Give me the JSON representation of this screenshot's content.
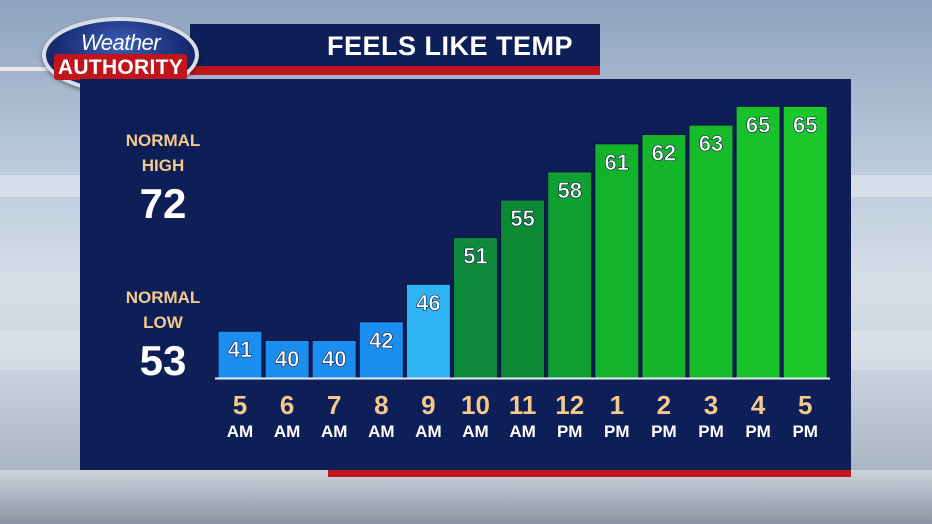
{
  "logo": {
    "line1": "Weather",
    "line2": "AUTHORITY"
  },
  "header": {
    "title": "FEELS LIKE TEMP"
  },
  "normals": {
    "high_label_1": "NORMAL",
    "high_label_2": "HIGH",
    "high_value": "72",
    "low_label_1": "NORMAL",
    "low_label_2": "LOW",
    "low_value": "53"
  },
  "colors": {
    "panel": "#0e1e57",
    "accent_red": "#c0151b",
    "label_gold": "#f3c98c",
    "bar_blue": "#1b8ef0",
    "bar_light_blue": "#2fb3f2",
    "bar_dark_green": "#0e8a3c",
    "bar_green": "#15b52a"
  },
  "chart_data": {
    "type": "bar",
    "title": "FEELS LIKE TEMP",
    "categories": [
      {
        "hour": "5",
        "period": "AM"
      },
      {
        "hour": "6",
        "period": "AM"
      },
      {
        "hour": "7",
        "period": "AM"
      },
      {
        "hour": "8",
        "period": "AM"
      },
      {
        "hour": "9",
        "period": "AM"
      },
      {
        "hour": "10",
        "period": "AM"
      },
      {
        "hour": "11",
        "period": "AM"
      },
      {
        "hour": "12",
        "period": "PM"
      },
      {
        "hour": "1",
        "period": "PM"
      },
      {
        "hour": "2",
        "period": "PM"
      },
      {
        "hour": "3",
        "period": "PM"
      },
      {
        "hour": "4",
        "period": "PM"
      },
      {
        "hour": "5",
        "period": "PM"
      }
    ],
    "values": [
      41,
      40,
      40,
      42,
      46,
      51,
      55,
      58,
      61,
      62,
      63,
      65,
      65
    ],
    "bar_colors": [
      "#1b8ef0",
      "#1b8ef0",
      "#1b8ef0",
      "#1b8ef0",
      "#2fb3f2",
      "#0e8a3c",
      "#0c8a33",
      "#0ea131",
      "#12b22a",
      "#15b52a",
      "#17bb2a",
      "#19c22b",
      "#1bc82c"
    ],
    "ylim": [
      36,
      66
    ],
    "grid": false,
    "legend": "none"
  }
}
